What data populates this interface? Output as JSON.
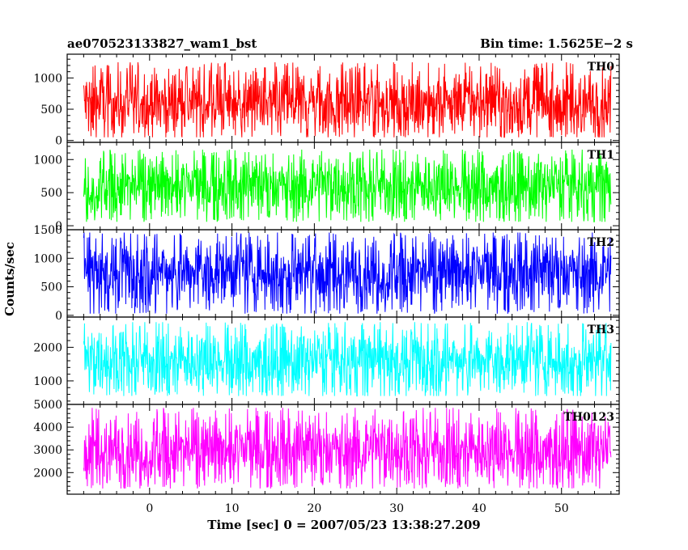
{
  "header": {
    "title": "ae070523133827_wam1_bst",
    "bin_time": "Bin time: 1.5625E−2 s"
  },
  "chart_data": {
    "type": "line",
    "title": "ae070523133827_wam1_bst",
    "xlabel": "Time [sec] 0 = 2007/05/23 13:38:27.209",
    "ylabel": "Counts/sec",
    "xlim": [
      -10,
      57
    ],
    "xticks": [
      0,
      10,
      20,
      30,
      40,
      50
    ],
    "data_x_range": [
      -8,
      56
    ],
    "bin_time_s": 0.015625,
    "grid": false,
    "panels": [
      {
        "name": "TH0",
        "color": "#ff0000",
        "ylim": [
          -30,
          1380
        ],
        "yticks": [
          0,
          500,
          1000
        ],
        "mean": 600,
        "min": 50,
        "max": 1250
      },
      {
        "name": "TH1",
        "color": "#00ff00",
        "ylim": [
          -60,
          1260
        ],
        "yticks": [
          0,
          500,
          1000
        ],
        "mean": 600,
        "min": 60,
        "max": 1150
      },
      {
        "name": "TH2",
        "color": "#0000ff",
        "ylim": [
          -30,
          1500
        ],
        "yticks": [
          0,
          500,
          1000,
          1500
        ],
        "mean": 760,
        "min": 30,
        "max": 1450
      },
      {
        "name": "TH3",
        "color": "#00ffff",
        "ylim": [
          300,
          2900
        ],
        "yticks": [
          1000,
          2000
        ],
        "mean": 1600,
        "min": 550,
        "max": 2750
      },
      {
        "name": "TH0123",
        "color": "#ff00ff",
        "ylim": [
          1050,
          5000
        ],
        "yticks": [
          2000,
          3000,
          4000,
          5000
        ],
        "mean": 3000,
        "min": 1300,
        "max": 4850
      }
    ]
  }
}
